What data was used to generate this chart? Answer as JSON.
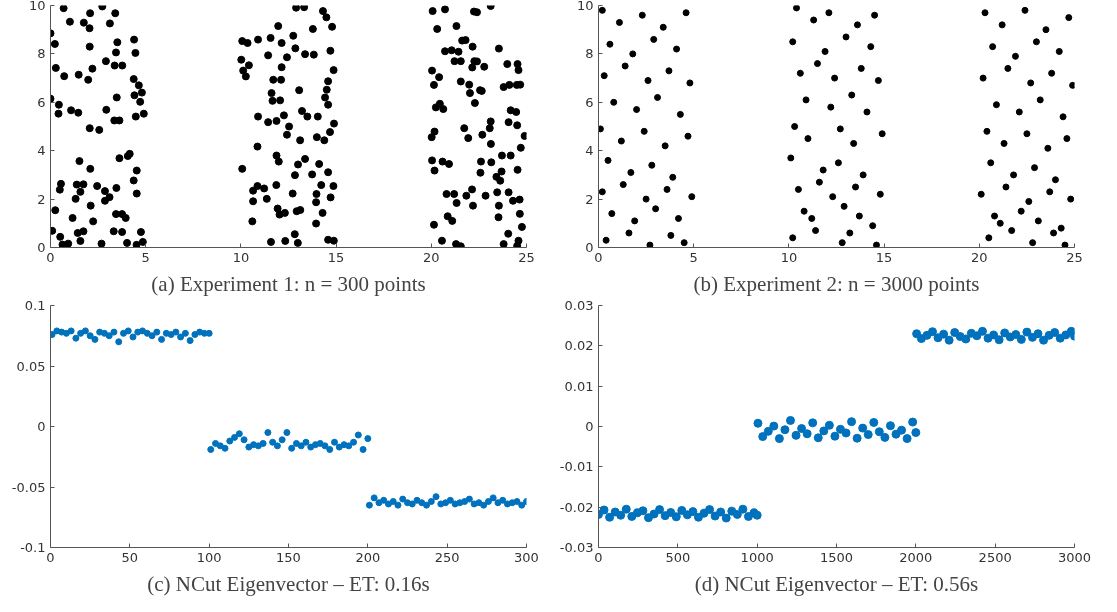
{
  "chart_data": [
    {
      "type": "scatter",
      "title": "(a) Experiment 1: n = 300 points",
      "xlim": [
        0,
        25
      ],
      "ylim": [
        0,
        10
      ],
      "xticks": [
        0,
        5,
        10,
        15,
        20,
        25
      ],
      "yticks": [
        0,
        2,
        4,
        6,
        8,
        10
      ],
      "grid": false,
      "marker": "circle",
      "series": [
        {
          "color": "#000000",
          "x": [
            0.69,
            0,
            0.23,
            0.28,
            0.72,
            0,
            0.44,
            0.42,
            1.08,
            1.46,
            1.02,
            1.75,
            2.08,
            2.05,
            2.06,
            1.98,
            1.48,
            2.2,
            2.06,
            2.56,
            2.72,
            3.12,
            3.4,
            2.91,
            3.44,
            3.51,
            3.37,
            3.77,
            3.48,
            3.35,
            3.62,
            2.93,
            4.39,
            4.46,
            4.37,
            4.64,
            4.41,
            4.8,
            4.71,
            4.48,
            4.9,
            1.52,
            0.55,
            0.49,
            0.25,
            1.38,
            1.73,
            1.57,
            1.32,
            2.09,
            2.11,
            2.45,
            2.86,
            2.86,
            3.1,
            3.46,
            3.62,
            4.06,
            4.16,
            4.53,
            4.53,
            4.37,
            1.16,
            2.24,
            3.44,
            3.76,
            3.95,
            0.09,
            0.51,
            0.63,
            0.93,
            1.43,
            1.73,
            1.57,
            2.68,
            3.32,
            3.76,
            4.02,
            4.52,
            4.75,
            4.85,
            12.9,
            13.32,
            14.31,
            14.79,
            13.78,
            14.49,
            11.96,
            11.56,
            10.07,
            10.35,
            10.9,
            12.14,
            12.75,
            12.86,
            13.37,
            13.83,
            14.7,
            10.02,
            10.42,
            10.12,
            10.26,
            11.43,
            12.42,
            12.14,
            14.87,
            11.7,
            12.11,
            14.58,
            14.51,
            13.06,
            11.61,
            11.66,
            12.06,
            14.42,
            14.58,
            10.9,
            11.43,
            11.87,
            12.26,
            12.53,
            13.21,
            13.49,
            14.04,
            14.89,
            14.68,
            12.42,
            13.11,
            13.99,
            14.38,
            10.87,
            10.07,
            11.87,
            11.99,
            13,
            13.37,
            14.11,
            12.84,
            13.74,
            14.58,
            10.87,
            11.22,
            10.64,
            11.86,
            14.86,
            14.22,
            13.97,
            12.72,
            11.36,
            10.64,
            13.95,
            14.71,
            11.93,
            12.03,
            12.31,
            12.93,
            13.12,
            14.29,
            10.6,
            13.95,
            11.58,
            12.33,
            12.83,
            12.99,
            14.58,
            14.88,
            20.07,
            20.72,
            22.24,
            22.4,
            23.12,
            20.31,
            21.32,
            20.72,
            21.07,
            21.43,
            21.62,
            21.8,
            22.17,
            23.55,
            20.04,
            20.14,
            20.41,
            21.22,
            21.55,
            22.15,
            22.26,
            22.4,
            22.78,
            23.99,
            24.53,
            24.58,
            21.55,
            21.99,
            22.56,
            22.65,
            23.8,
            24.1,
            24.49,
            24.67,
            20.45,
            20.63,
            20.24,
            22.03,
            22.29,
            23.12,
            24.17,
            24.06,
            24.46,
            24.51,
            21.73,
            23.07,
            22.68,
            21.94,
            20.02,
            20.17,
            23.13,
            24.7,
            24.9,
            20.04,
            20.17,
            20.59,
            20.93,
            22.61,
            23.15,
            23.71,
            24.17,
            23.69,
            24.53,
            22.58,
            23.42,
            23.62,
            20.8,
            21.2,
            21.33,
            21.84,
            22.14,
            22.85,
            23.46,
            23.55,
            24.06,
            24.29,
            24.64,
            22.19,
            20.86,
            21.1,
            23.53,
            24.65,
            20.14,
            24.76,
            20.56,
            21.3,
            21.55,
            23.8,
            24.04,
            24.58,
            24.51
          ],
          "values": [
            9.89,
            8.85,
            8.41,
            7.42,
            7.08,
            6.15,
            5.9,
            5.53,
            5.67,
            5.57,
            9.33,
            9.29,
            9.68,
            9.06,
            8.3,
            6.93,
            7.14,
            7.39,
            4.93,
            4.86,
            9.96,
            9.26,
            9.68,
            7.7,
            8.06,
            8.48,
            7.52,
            7.52,
            6.2,
            5.25,
            5.25,
            5.69,
            8.59,
            8.04,
            6.96,
            6.7,
            6.29,
            6.4,
            6.02,
            5.41,
            5.53,
            3.57,
            2.63,
            2.39,
            1.54,
            2.6,
            2.61,
            2.3,
            2.01,
            3.25,
            1.73,
            2.54,
            2.33,
            1.93,
            2.08,
            2.46,
            3.69,
            3.78,
            3.87,
            3.18,
            2.23,
            2.77,
            1.22,
            1.08,
            1.38,
            1.38,
            1.22,
            0.69,
            0.44,
            0.12,
            0.16,
            0.6,
            0.67,
            0.27,
            0.16,
            0.67,
            0.64,
            0.19,
            0.11,
            0.64,
            0.23,
            9.91,
            9.93,
            9.77,
            9.12,
            9.03,
            9.51,
            9.15,
            8.66,
            8.53,
            8.45,
            8.59,
            8.45,
            8.75,
            8.23,
            7.99,
            7.97,
            8.13,
            7.76,
            7.53,
            7.31,
            7.07,
            7.94,
            7.86,
            7.45,
            7.33,
            6.93,
            6.93,
            6.87,
            6.52,
            6.5,
            6.38,
            6.06,
            6.08,
            6.2,
            5.9,
            5.41,
            5.18,
            5.23,
            5.46,
            5,
            5.64,
            5.41,
            5.41,
            5.12,
            4.77,
            4.66,
            4.43,
            4.56,
            4.43,
            4.17,
            3.25,
            3.8,
            3.55,
            3.43,
            3.66,
            3.45,
            2.99,
            3.02,
            3.11,
            2.54,
            2.44,
            2.35,
            2.58,
            2.54,
            2.58,
            2.21,
            2.23,
            2.01,
            1.91,
            1.87,
            2.07,
            1.61,
            1.36,
            1.43,
            1.5,
            1.55,
            1.43,
            1.08,
            0.99,
            0.23,
            0.27,
            0.55,
            0.19,
            0.32,
            0.28,
            9.77,
            9.84,
            9.75,
            9.72,
            9.98,
            9.03,
            9.15,
            8.11,
            8.15,
            8.09,
            8.55,
            8.57,
            8.3,
            8.22,
            7.31,
            6.72,
            7.04,
            7.7,
            7.7,
            7.44,
            7.7,
            7.69,
            7.47,
            7.58,
            7.58,
            7.33,
            6.86,
            6.73,
            6.5,
            6.47,
            6.63,
            6.72,
            6.72,
            6.73,
            5.94,
            5.72,
            5.79,
            6.38,
            5.97,
            5.21,
            5.67,
            5.18,
            5.6,
            5.05,
            4.93,
            4.93,
            4.66,
            4.52,
            4.56,
            4.79,
            4.28,
            4.12,
            4.61,
            3.6,
            3.18,
            3.55,
            3.45,
            3.55,
            3.52,
            3.8,
            3.8,
            3.14,
            3.21,
            3.09,
            2.92,
            2.76,
            2.21,
            2.21,
            1.84,
            2.14,
            2.4,
            2.14,
            2.28,
            1.73,
            2.28,
            1.93,
            1.98,
            1.73,
            1.29,
            1.1,
            1.25,
            1.39,
            0.94,
            0.85,
            0.28,
            0.14,
            0.05,
            0.14,
            0.57,
            0.28,
            0.07
          ]
        }
      ]
    },
    {
      "type": "scatter",
      "title": "(b) Experiment 2: n = 3000 points",
      "xlim": [
        0,
        25
      ],
      "ylim": [
        0,
        10
      ],
      "xticks": [
        0,
        5,
        10,
        15,
        20,
        25
      ],
      "yticks": [
        0,
        2,
        4,
        6,
        8,
        10
      ],
      "grid": false,
      "marker": "circle",
      "series": [
        {
          "color": "#000000",
          "x": [
            0.2,
            1.1,
            2.3,
            3.4,
            4.6,
            0.6,
            1.8,
            2.9,
            4.1,
            0.3,
            1.4,
            2.6,
            3.7,
            4.8,
            0.8,
            2.0,
            3.1,
            4.3,
            0.1,
            1.2,
            2.4,
            3.5,
            4.7,
            0.5,
            1.7,
            2.8,
            3.9,
            0.2,
            1.3,
            2.5,
            3.6,
            4.9,
            0.7,
            1.9,
            3.0,
            4.2,
            0.4,
            1.6,
            2.7,
            3.8,
            4.5,
            10.4,
            11.3,
            12.1,
            13.6,
            14.5,
            10.2,
            11.9,
            13.0,
            14.3,
            10.6,
            11.5,
            12.4,
            13.8,
            14.7,
            10.9,
            12.2,
            13.3,
            14.1,
            10.3,
            11.0,
            12.7,
            13.4,
            14.9,
            10.1,
            11.8,
            12.6,
            13.9,
            10.5,
            11.6,
            12.3,
            13.5,
            14.8,
            10.8,
            11.2,
            12.9,
            13.7,
            14.4,
            10.2,
            11.4,
            12.8,
            13.2,
            14.6,
            20.3,
            21.2,
            22.4,
            23.5,
            24.7,
            20.7,
            21.9,
            23.0,
            24.2,
            20.2,
            21.5,
            22.7,
            23.8,
            24.9,
            20.9,
            22.1,
            23.2,
            24.4,
            20.4,
            21.3,
            22.5,
            23.6,
            24.6,
            20.6,
            21.8,
            22.9,
            24.0,
            20.1,
            21.4,
            22.6,
            23.7,
            24.8,
            20.8,
            21.1,
            22.2,
            23.1,
            24.3,
            20.5,
            21.7,
            22.8,
            23.9,
            24.5
          ],
          "values": [
            9.8,
            9.3,
            9.6,
            9.1,
            9.7,
            8.4,
            8.0,
            8.6,
            8.2,
            7.1,
            7.5,
            6.9,
            7.3,
            6.8,
            6.0,
            5.7,
            6.2,
            5.5,
            4.9,
            4.4,
            4.8,
            4.2,
            4.6,
            3.6,
            3.1,
            3.4,
            2.9,
            2.3,
            2.6,
            2.0,
            2.4,
            2.1,
            1.4,
            1.1,
            1.6,
            1.2,
            0.3,
            0.6,
            0.1,
            0.5,
            0.2,
            9.9,
            9.4,
            9.7,
            9.2,
            9.6,
            8.5,
            8.1,
            8.7,
            8.3,
            7.2,
            7.6,
            7.0,
            7.4,
            6.9,
            6.1,
            5.8,
            6.3,
            5.6,
            5.0,
            4.5,
            4.9,
            4.3,
            4.7,
            3.7,
            3.2,
            3.5,
            3.0,
            2.4,
            2.7,
            2.1,
            2.5,
            2.2,
            1.5,
            1.2,
            1.7,
            1.3,
            0.9,
            0.4,
            0.7,
            0.2,
            0.6,
            0.1,
            9.7,
            9.2,
            9.8,
            9.0,
            9.5,
            8.3,
            7.9,
            8.5,
            8.1,
            7.0,
            7.4,
            6.8,
            7.2,
            6.7,
            5.9,
            5.6,
            6.1,
            5.4,
            4.8,
            4.3,
            4.7,
            4.1,
            4.5,
            3.5,
            3.0,
            3.3,
            2.8,
            2.2,
            2.5,
            1.9,
            2.3,
            2.0,
            1.3,
            1.0,
            1.5,
            1.1,
            0.8,
            0.4,
            0.7,
            0.2,
            0.6,
            0.1
          ]
        }
      ]
    },
    {
      "type": "scatter",
      "title": "(c) NCut Eigenvector – ET: 0.16s",
      "xlim": [
        0,
        300
      ],
      "ylim": [
        -0.1,
        0.1
      ],
      "xticks": [
        0,
        50,
        100,
        150,
        200,
        250,
        300
      ],
      "yticks": [
        -0.1,
        -0.05,
        0,
        0.05,
        0.1
      ],
      "grid": false,
      "marker": "circle",
      "series": [
        {
          "color": "#0072bd",
          "x": [
            1,
            4,
            7,
            10,
            13,
            16,
            19,
            22,
            25,
            28,
            31,
            34,
            37,
            40,
            43,
            46,
            49,
            52,
            55,
            58,
            61,
            64,
            67,
            70,
            73,
            76,
            79,
            82,
            85,
            88,
            91,
            94,
            97,
            100,
            101,
            104,
            107,
            110,
            113,
            116,
            119,
            122,
            125,
            128,
            131,
            134,
            137,
            140,
            143,
            146,
            149,
            152,
            155,
            158,
            161,
            164,
            167,
            170,
            173,
            176,
            179,
            182,
            185,
            188,
            191,
            194,
            197,
            200,
            201,
            204,
            207,
            210,
            213,
            216,
            219,
            222,
            225,
            228,
            231,
            234,
            237,
            240,
            243,
            246,
            249,
            252,
            255,
            258,
            261,
            264,
            267,
            270,
            273,
            276,
            279,
            282,
            285,
            288,
            291,
            294,
            297,
            300
          ],
          "values": [
            0.076,
            0.079,
            0.078,
            0.077,
            0.079,
            0.073,
            0.077,
            0.079,
            0.075,
            0.072,
            0.078,
            0.077,
            0.075,
            0.078,
            0.07,
            0.077,
            0.079,
            0.074,
            0.078,
            0.079,
            0.077,
            0.075,
            0.078,
            0.072,
            0.077,
            0.076,
            0.078,
            0.074,
            0.077,
            0.071,
            0.076,
            0.078,
            0.077,
            0.077,
            -0.019,
            -0.014,
            -0.016,
            -0.018,
            -0.012,
            -0.009,
            -0.006,
            -0.011,
            -0.017,
            -0.015,
            -0.016,
            -0.014,
            -0.005,
            -0.013,
            -0.016,
            -0.011,
            -0.005,
            -0.018,
            -0.014,
            -0.016,
            -0.013,
            -0.017,
            -0.015,
            -0.014,
            -0.016,
            -0.019,
            -0.013,
            -0.017,
            -0.015,
            -0.016,
            -0.013,
            -0.007,
            -0.019,
            -0.01,
            -0.065,
            -0.059,
            -0.063,
            -0.061,
            -0.064,
            -0.062,
            -0.065,
            -0.06,
            -0.063,
            -0.064,
            -0.061,
            -0.063,
            -0.065,
            -0.062,
            -0.058,
            -0.064,
            -0.063,
            -0.061,
            -0.064,
            -0.063,
            -0.062,
            -0.06,
            -0.064,
            -0.063,
            -0.065,
            -0.062,
            -0.059,
            -0.063,
            -0.061,
            -0.064,
            -0.063,
            -0.062,
            -0.065,
            -0.062
          ]
        }
      ]
    },
    {
      "type": "scatter",
      "title": "(d) NCut Eigenvector – ET: 0.56s",
      "xlim": [
        0,
        3000
      ],
      "ylim": [
        -0.03,
        0.03
      ],
      "xticks": [
        0,
        500,
        1000,
        1500,
        2000,
        2500,
        3000
      ],
      "yticks": [
        -0.03,
        -0.02,
        -0.01,
        0,
        0.01,
        0.02,
        0.03
      ],
      "grid": false,
      "marker": "circle",
      "series": [
        {
          "color": "#0072bd",
          "x": [
            0,
            35,
            70,
            105,
            140,
            175,
            210,
            245,
            280,
            315,
            350,
            385,
            420,
            455,
            490,
            525,
            560,
            595,
            630,
            665,
            700,
            735,
            770,
            805,
            840,
            875,
            910,
            945,
            980,
            1000,
            1005,
            1035,
            1070,
            1105,
            1140,
            1175,
            1210,
            1245,
            1280,
            1315,
            1350,
            1385,
            1420,
            1455,
            1490,
            1525,
            1560,
            1595,
            1630,
            1665,
            1700,
            1735,
            1770,
            1805,
            1840,
            1875,
            1910,
            1945,
            1980,
            2000,
            2005,
            2035,
            2070,
            2105,
            2140,
            2175,
            2210,
            2245,
            2280,
            2315,
            2350,
            2385,
            2420,
            2455,
            2490,
            2525,
            2560,
            2595,
            2630,
            2665,
            2700,
            2735,
            2770,
            2805,
            2840,
            2875,
            2910,
            2945,
            2980,
            3000
          ],
          "values": [
            -0.0218,
            -0.0207,
            -0.0225,
            -0.0212,
            -0.022,
            -0.0205,
            -0.0223,
            -0.0214,
            -0.0209,
            -0.0226,
            -0.0217,
            -0.0206,
            -0.0221,
            -0.0213,
            -0.0224,
            -0.0208,
            -0.0219,
            -0.0211,
            -0.0225,
            -0.0215,
            -0.0206,
            -0.0222,
            -0.0212,
            -0.0227,
            -0.021,
            -0.0218,
            -0.0205,
            -0.0223,
            -0.0214,
            -0.022,
            0.0008,
            -0.0025,
            -0.0012,
            0.0001,
            -0.003,
            -0.0008,
            0.0015,
            -0.0022,
            -0.0005,
            -0.0018,
            0.0009,
            -0.0028,
            -0.0011,
            0.0003,
            -0.0024,
            -0.0007,
            -0.0016,
            0.0012,
            -0.0029,
            -0.0004,
            -0.002,
            0.001,
            -0.0013,
            -0.0027,
            0.0002,
            -0.0019,
            -0.0009,
            -0.003,
            0.0011,
            -0.0015,
            0.023,
            0.0218,
            0.0226,
            0.0235,
            0.022,
            0.0229,
            0.0214,
            0.0233,
            0.0223,
            0.0217,
            0.0231,
            0.0225,
            0.0236,
            0.0219,
            0.0227,
            0.0215,
            0.0232,
            0.0222,
            0.0228,
            0.0216,
            0.0234,
            0.0221,
            0.023,
            0.0214,
            0.0226,
            0.0233,
            0.0219,
            0.0227,
            0.0236,
            0.0224
          ]
        }
      ]
    }
  ]
}
